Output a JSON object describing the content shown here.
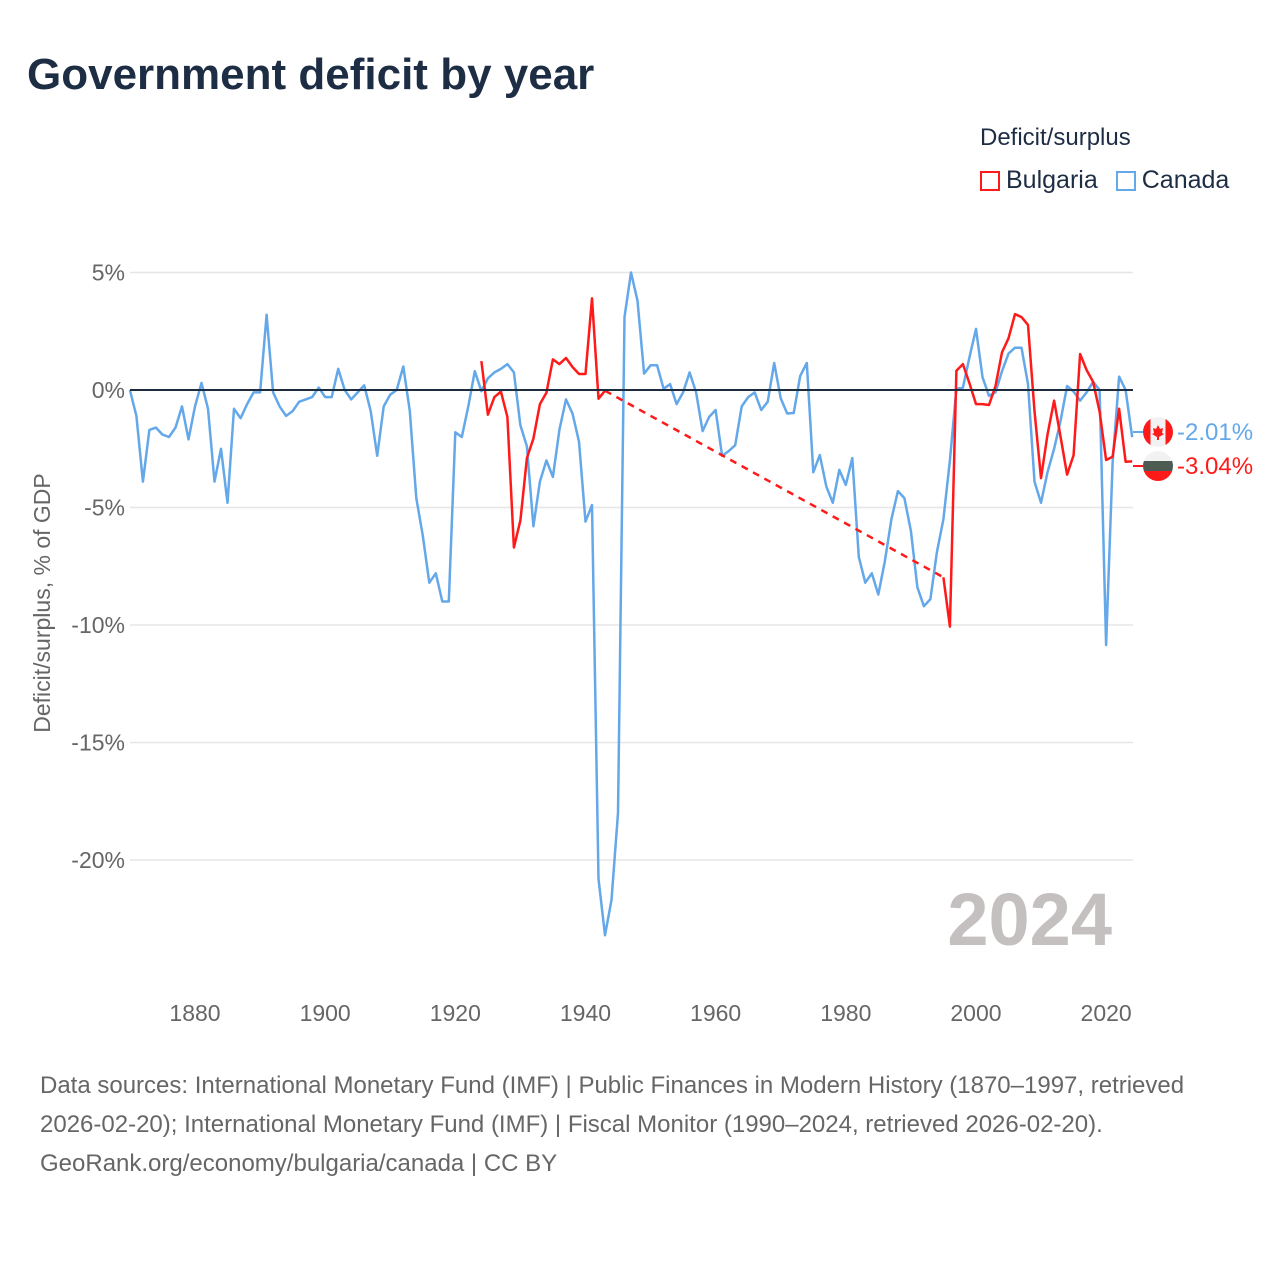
{
  "title": "Government deficit by year",
  "legend": {
    "title": "Deficit/surplus",
    "items": [
      {
        "label": "Bulgaria",
        "color": "#ff1a1a"
      },
      {
        "label": "Canada",
        "color": "#64a8ea"
      }
    ]
  },
  "big_year": "2024",
  "end_labels": {
    "canada": "-2.01%",
    "bulgaria": "-3.04%"
  },
  "footer": {
    "sources": "Data sources: International Monetary Fund (IMF) | Public Finances in Modern History (1870–1997, retrieved 2026-02-20); International Monetary Fund (IMF) | Fiscal Monitor (1990–2024, retrieved 2026-02-20).",
    "credit": "GeoRank.org/economy/bulgaria/canada | CC BY"
  },
  "chart_data": {
    "type": "line",
    "title": "Government deficit by year",
    "xlabel": "",
    "ylabel": "Deficit/surplus, % of GDP",
    "xlim": [
      1870,
      2024
    ],
    "ylim": [
      -24,
      5.5
    ],
    "x_ticks": [
      1880,
      1900,
      1920,
      1940,
      1960,
      1980,
      2000,
      2020
    ],
    "x_tick_labels": [
      "1880",
      "1900",
      "1920",
      "1940",
      "1960",
      "1980",
      "2000",
      "2020"
    ],
    "y_ticks": [
      5,
      0,
      -5,
      -10,
      -15,
      -20
    ],
    "y_tick_labels": [
      "5%",
      "0%",
      "-5%",
      "-10%",
      "-15%",
      "-20%"
    ],
    "grid": true,
    "legend_position": "top-right",
    "series": [
      {
        "name": "Canada",
        "color": "#64a8ea",
        "start_year": 1870,
        "values": [
          0,
          -1.1,
          -3.9,
          -1.7,
          -1.6,
          -1.9,
          -2.0,
          -1.6,
          -0.7,
          -2.1,
          -0.7,
          0.3,
          -0.8,
          -3.9,
          -2.5,
          -4.8,
          -0.8,
          -1.2,
          -0.6,
          -0.1,
          -0.1,
          3.2,
          -0.1,
          -0.7,
          -1.1,
          -0.9,
          -0.5,
          -0.4,
          -0.3,
          0.1,
          -0.3,
          -0.3,
          0.9,
          0.0,
          -0.4,
          -0.1,
          0.2,
          -0.9,
          -2.8,
          -0.7,
          -0.2,
          0.0,
          1.0,
          -0.9,
          -4.6,
          -6.2,
          -8.2,
          -7.8,
          -9.0,
          -9.0,
          -1.8,
          -2.0,
          -0.7,
          0.8,
          -0.05,
          0.5,
          0.75,
          0.9,
          1.1,
          0.75,
          -1.5,
          -2.4,
          -5.8,
          -3.9,
          -3.0,
          -3.7,
          -1.7,
          -0.4,
          -1.0,
          -2.2,
          -5.6,
          -4.9,
          -20.8,
          -23.2,
          -21.7,
          -18.0,
          3.1,
          5.0,
          3.8,
          0.7,
          1.05,
          1.05,
          0.05,
          0.25,
          -0.6,
          -0.1,
          0.75,
          -0.1,
          -1.75,
          -1.15,
          -0.85,
          -2.8,
          -2.6,
          -2.35,
          -0.7,
          -0.3,
          -0.1,
          -0.85,
          -0.5,
          1.15,
          -0.35,
          -1.0,
          -0.98,
          0.6,
          1.15,
          -3.5,
          -2.77,
          -4.1,
          -4.8,
          -3.4,
          -4.04,
          -2.9,
          -7.1,
          -8.2,
          -7.8,
          -8.7,
          -7.3,
          -5.5,
          -4.3,
          -4.6,
          -6.0,
          -8.4,
          -9.2,
          -8.9,
          -6.9,
          -5.5,
          -3.0,
          0.05,
          0.1,
          1.4,
          2.6,
          0.55,
          -0.25,
          -0.1,
          0.8,
          1.55,
          1.8,
          1.8,
          0.25,
          -3.9,
          -4.8,
          -3.5,
          -2.5,
          -1.3,
          0.17,
          -0.07,
          -0.45,
          -0.1,
          0.35,
          0.0,
          -10.85,
          -3.1,
          0.57,
          0.0,
          -2.01
        ]
      },
      {
        "name": "Bulgaria",
        "color": "#ff1a1a",
        "segments": [
          {
            "start_year": 1924,
            "values": [
              1.23,
              -1.05,
              -0.3,
              -0.07,
              -1.15,
              -6.7,
              -5.55,
              -2.9,
              -2.07,
              -0.6,
              -0.12,
              1.3,
              1.1,
              1.36,
              0.98,
              0.68,
              0.68,
              3.9,
              -0.37,
              -0.03
            ]
          },
          {
            "start_year": 1995,
            "values": [
              -7.97,
              -10.07,
              0.82,
              1.1,
              0.28,
              -0.6,
              -0.6,
              -0.64,
              0.17,
              1.6,
              2.2,
              3.23,
              3.1,
              2.77,
              -0.9,
              -3.75,
              -1.9,
              -0.45,
              -2.0,
              -3.6,
              -2.77,
              1.53,
              0.85,
              0.35,
              -0.92,
              -2.98,
              -2.84,
              -0.8,
              -3.05,
              -3.04
            ]
          }
        ]
      }
    ]
  }
}
